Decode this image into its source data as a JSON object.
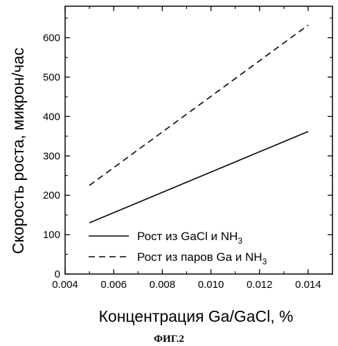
{
  "chart_data": {
    "type": "line",
    "xlabel": "Концентрация Ga/GaCl, %",
    "ylabel": "Скорость роста, микрон/час",
    "xlim": [
      0.004,
      0.015
    ],
    "ylim": [
      0,
      680
    ],
    "xticks": [
      "0.004",
      "0.006",
      "0.008",
      "0.010",
      "0.012",
      "0.014"
    ],
    "yticks": [
      "0",
      "100",
      "200",
      "300",
      "400",
      "500",
      "600"
    ],
    "series": [
      {
        "name": "Рост из GaCl и NH3",
        "legend_main": "Рост из GaCl и NH",
        "legend_sub": "3",
        "style": "solid",
        "x": [
          0.005,
          0.014
        ],
        "y": [
          130,
          362
        ]
      },
      {
        "name": "Рост из паров Ga и NH3",
        "legend_main": "Рост из паров Ga и NH",
        "legend_sub": "3",
        "style": "dashed",
        "x": [
          0.005,
          0.014
        ],
        "y": [
          225,
          632
        ]
      }
    ],
    "legend_position": "bottom-right",
    "grid": false
  },
  "caption": "ФИГ.2"
}
